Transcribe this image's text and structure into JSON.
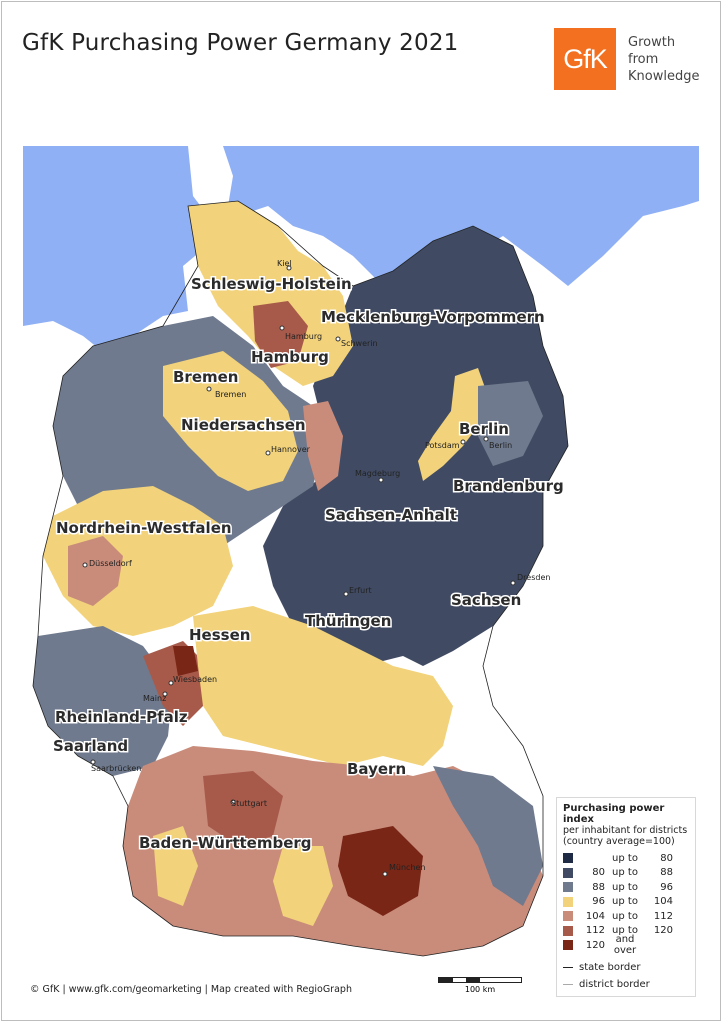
{
  "title": "GfK Purchasing Power Germany 2021",
  "logo": {
    "text": "GfK",
    "color": "#f37021"
  },
  "tagline": [
    "Growth",
    "from",
    "Knowledge"
  ],
  "colors": {
    "sea": "#8fb0f5",
    "c1": "#1f2a44",
    "c2": "#404b63",
    "c3": "#6f7a8e",
    "c4": "#f2d27a",
    "c5": "#c98c7b",
    "c6": "#a85a4a",
    "c7": "#7a2616"
  },
  "states": [
    "Schleswig-Holstein",
    "Mecklenburg-Vorpommern",
    "Hamburg",
    "Bremen",
    "Niedersachsen",
    "Berlin",
    "Brandenburg",
    "Sachsen-Anhalt",
    "Nordrhein-Westfalen",
    "Sachsen",
    "Thüringen",
    "Hessen",
    "Rheinland-Pfalz",
    "Saarland",
    "Bayern",
    "Baden-Württemberg"
  ],
  "cities": [
    "Kiel",
    "Hamburg",
    "Schwerin",
    "Bremen",
    "Hannover",
    "Potsdam",
    "Berlin",
    "Magdeburg",
    "Düsseldorf",
    "Dresden",
    "Erfurt",
    "Wiesbaden",
    "Mainz",
    "Saarbrücken",
    "Stuttgart",
    "München"
  ],
  "legend": {
    "title": "Purchasing power index",
    "subtitle_1": "per inhabitant for districts",
    "subtitle_2": "(country average=100)",
    "classes": [
      {
        "low": "",
        "mid": "up to",
        "high": "80",
        "color": "#1f2a44"
      },
      {
        "low": "80",
        "mid": "up to",
        "high": "88",
        "color": "#404b63"
      },
      {
        "low": "88",
        "mid": "up to",
        "high": "96",
        "color": "#6f7a8e"
      },
      {
        "low": "96",
        "mid": "up to",
        "high": "104",
        "color": "#f2d27a"
      },
      {
        "low": "104",
        "mid": "up to",
        "high": "112",
        "color": "#c98c7b"
      },
      {
        "low": "112",
        "mid": "up to",
        "high": "120",
        "color": "#a85a4a"
      },
      {
        "low": "120",
        "mid": "and over",
        "high": "",
        "color": "#7a2616"
      }
    ],
    "state_border": "state border",
    "district_border": "district border"
  },
  "scale_label": "100 km",
  "footer": "© GfK | www.gfk.com/geomarketing | Map created with RegioGraph"
}
